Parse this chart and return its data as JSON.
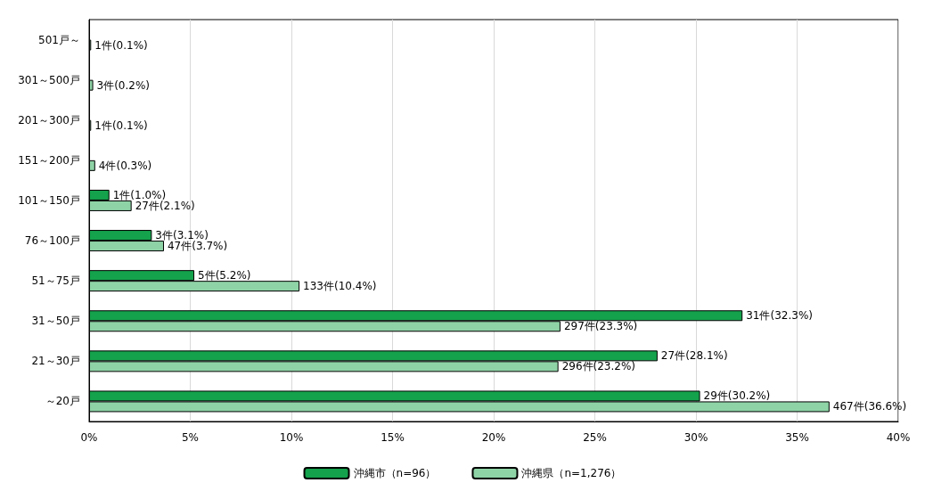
{
  "chart_data": {
    "type": "bar",
    "orientation": "horizontal",
    "categories": [
      "501戸～",
      "301～500戸",
      "201～300戸",
      "151～200戸",
      "101～150戸",
      "76～100戸",
      "51～75戸",
      "31～50戸",
      "21～30戸",
      "～20戸"
    ],
    "series": [
      {
        "name": "沖縄市（n=96）",
        "color": "#14a24c",
        "values": [
          null,
          null,
          null,
          null,
          1.0,
          3.1,
          5.2,
          32.3,
          28.1,
          30.2
        ],
        "value_labels": [
          null,
          null,
          null,
          null,
          "1件(1.0%)",
          "3件(3.1%)",
          "5件(5.2%)",
          "31件(32.3%)",
          "27件(28.1%)",
          "29件(30.2%)"
        ]
      },
      {
        "name": "沖縄県（n=1,276）",
        "color": "#8ed3a6",
        "values": [
          0.1,
          0.2,
          0.1,
          0.3,
          2.1,
          3.7,
          10.4,
          23.3,
          23.2,
          36.6
        ],
        "value_labels": [
          "1件(0.1%)",
          "3件(0.2%)",
          "1件(0.1%)",
          "4件(0.3%)",
          "27件(2.1%)",
          "47件(3.7%)",
          "133件(10.4%)",
          "297件(23.3%)",
          "296件(23.2%)",
          "467件(36.6%)"
        ]
      }
    ],
    "xlim": [
      0,
      40
    ],
    "xticks": [
      {
        "value": 0,
        "label": "0%"
      },
      {
        "value": 5,
        "label": "5%"
      },
      {
        "value": 10,
        "label": "10%"
      },
      {
        "value": 15,
        "label": "15%"
      },
      {
        "value": 20,
        "label": "20%"
      },
      {
        "value": 25,
        "label": "25%"
      },
      {
        "value": 30,
        "label": "30%"
      },
      {
        "value": 35,
        "label": "35%"
      },
      {
        "value": 40,
        "label": "40%"
      }
    ],
    "grid": "x",
    "legend": "bottom"
  }
}
